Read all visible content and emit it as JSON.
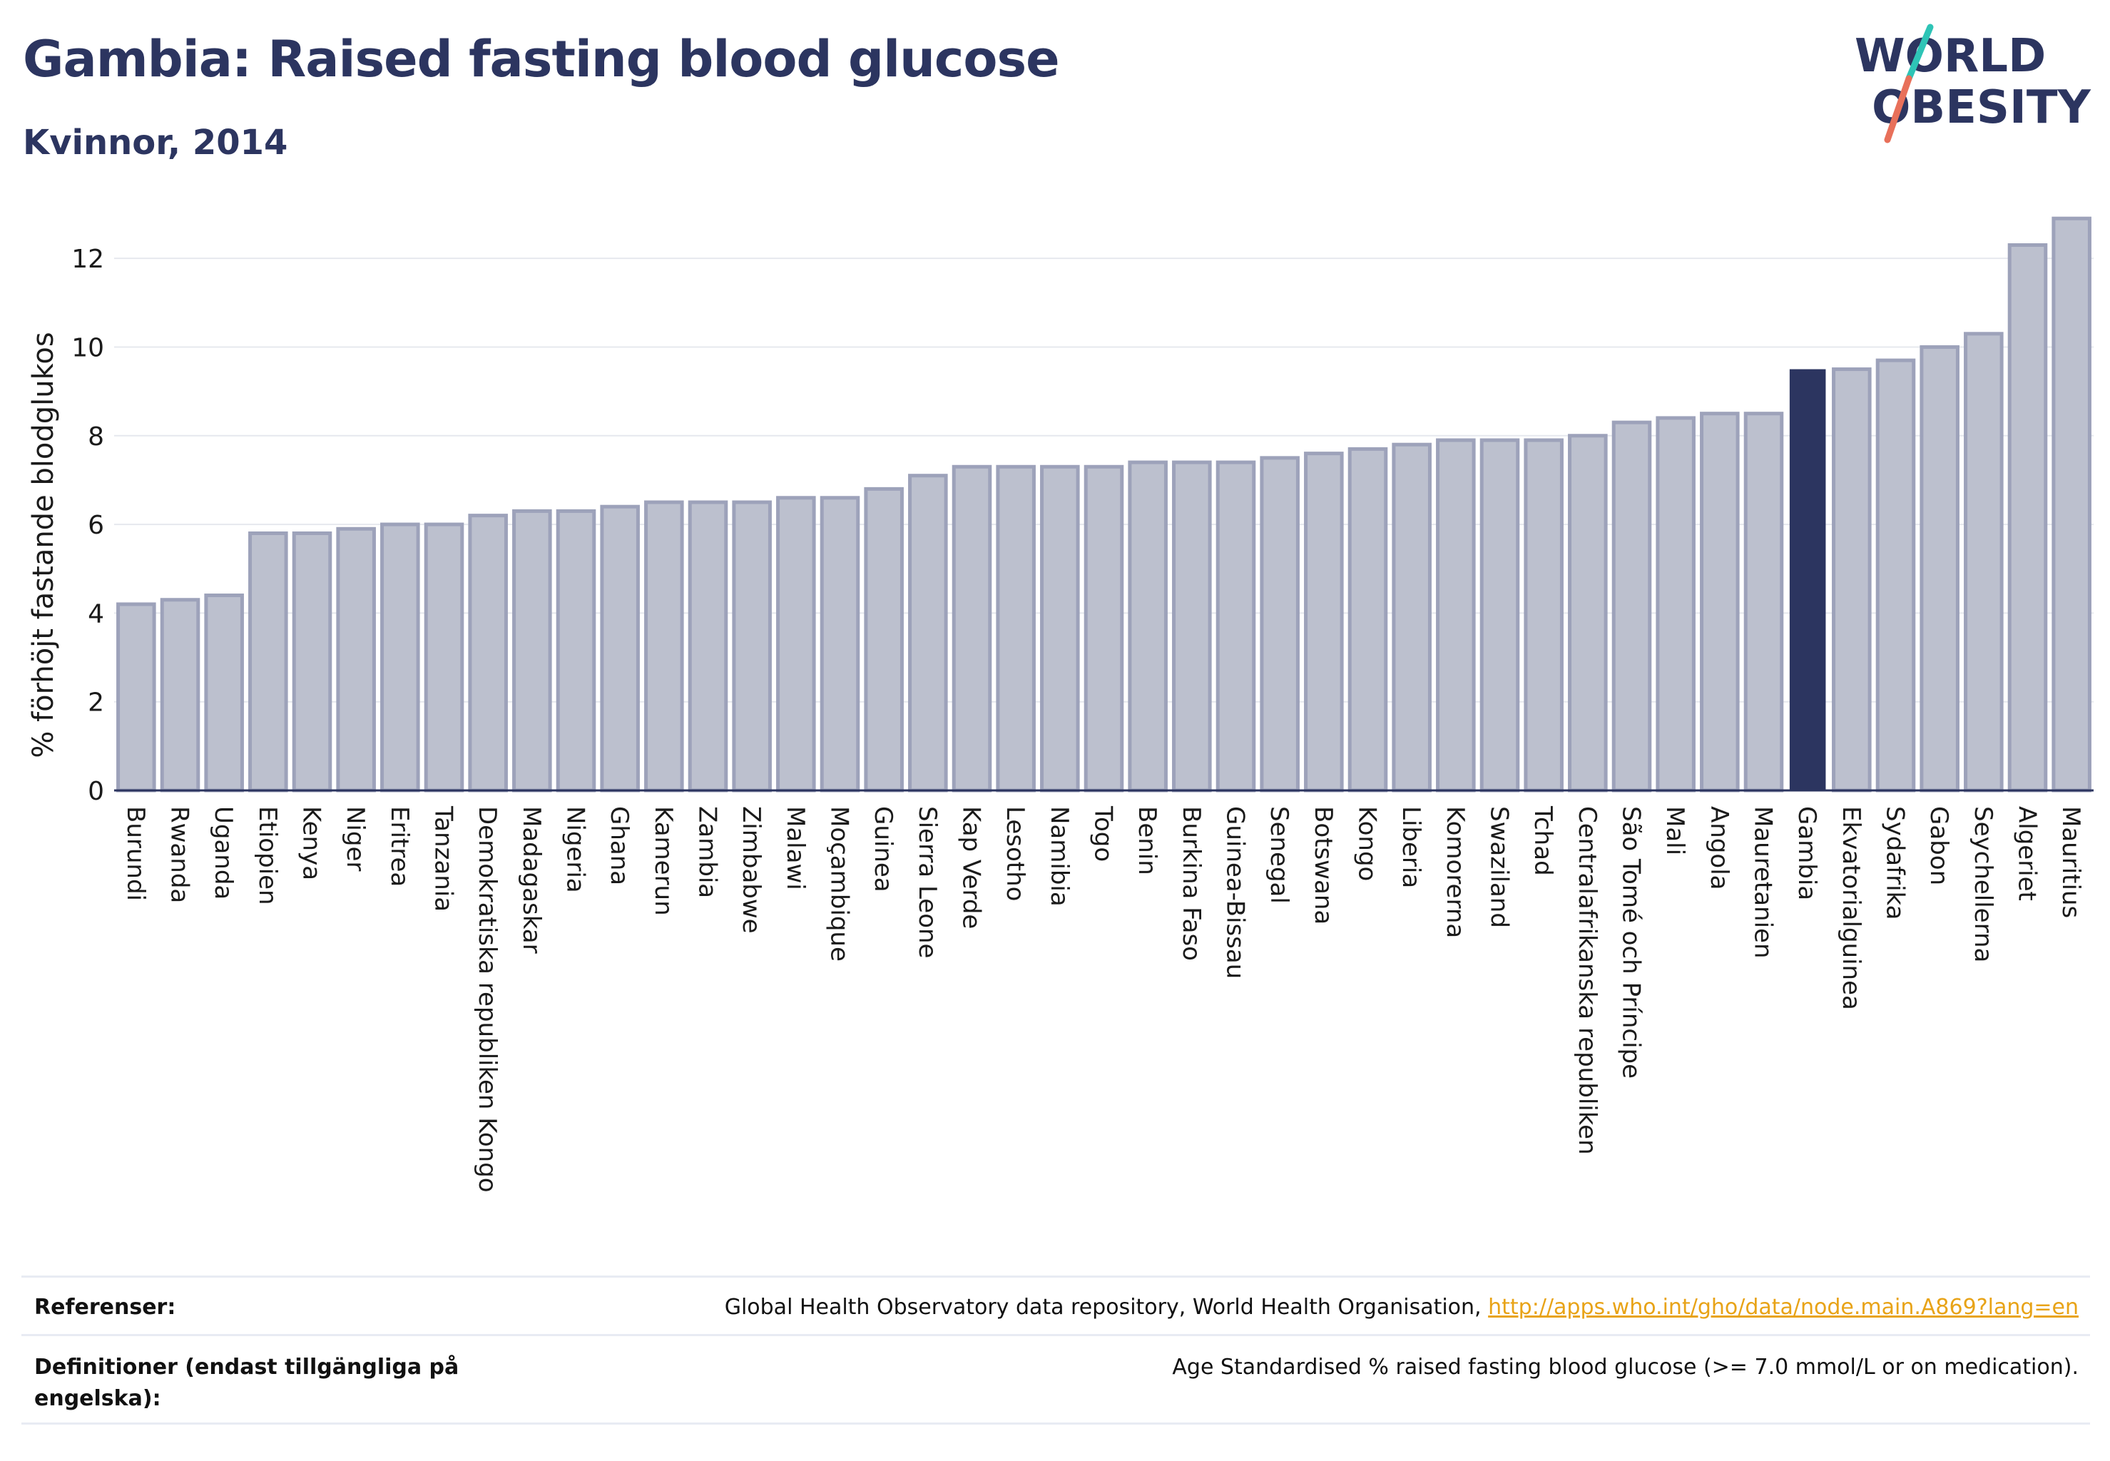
{
  "header": {
    "title": "Gambia: Raised fasting blood glucose",
    "subtitle": "Kvinnor, 2014"
  },
  "logo": {
    "line1": "WORLD",
    "line2": "OBESITY"
  },
  "colors": {
    "highlight": "#2c3560",
    "bar_fill": "#bcc0ce",
    "bar_stroke": "#9da2ba",
    "grid": "#e6e8ee",
    "link": "#e8a317",
    "logo_slash_top": "#2ec4b6",
    "logo_slash_bottom": "#e8705a"
  },
  "chart_data": {
    "type": "bar",
    "ylabel": "% förhöjt fastande blodglukos",
    "ylim": [
      0,
      13
    ],
    "yticks": [
      0,
      2,
      4,
      6,
      8,
      10,
      12
    ],
    "grid": true,
    "highlight": "Gambia",
    "categories": [
      "Burundi",
      "Rwanda",
      "Uganda",
      "Etiopien",
      "Kenya",
      "Niger",
      "Eritrea",
      "Tanzania",
      "Demokratiska republiken Kongo",
      "Madagaskar",
      "Nigeria",
      "Ghana",
      "Kamerun",
      "Zambia",
      "Zimbabwe",
      "Malawi",
      "Moçambique",
      "Guinea",
      "Sierra Leone",
      "Kap Verde",
      "Lesotho",
      "Namibia",
      "Togo",
      "Benin",
      "Burkina Faso",
      "Guinea-Bissau",
      "Senegal",
      "Botswana",
      "Kongo",
      "Liberia",
      "Komorerna",
      "Swaziland",
      "Tchad",
      "Centralafrikanska republiken",
      "São Tomé och Príncipe",
      "Mali",
      "Angola",
      "Mauretanien",
      "Gambia",
      "Ekvatorialguinea",
      "Sydafrika",
      "Gabon",
      "Seychellerna",
      "Algeriet",
      "Mauritius"
    ],
    "values": [
      4.2,
      4.3,
      4.4,
      5.8,
      5.8,
      5.9,
      6.0,
      6.0,
      6.2,
      6.3,
      6.3,
      6.4,
      6.5,
      6.5,
      6.5,
      6.6,
      6.6,
      6.8,
      7.1,
      7.3,
      7.3,
      7.3,
      7.3,
      7.4,
      7.4,
      7.4,
      7.5,
      7.6,
      7.7,
      7.8,
      7.9,
      7.9,
      7.9,
      8.0,
      8.3,
      8.4,
      8.5,
      8.5,
      9.5,
      9.5,
      9.7,
      10.0,
      10.3,
      12.3,
      12.9
    ]
  },
  "footer": {
    "references_label": "Referenser:",
    "references_text": "Global Health Observatory data repository, World Health Organisation,",
    "references_link": "http://apps.who.int/gho/data/node.main.A869?lang=en",
    "definitions_label": "Definitioner (endast tillgängliga på engelska):",
    "definitions_text": "Age Standardised % raised fasting blood glucose (>= 7.0 mmol/L or on medication)."
  }
}
